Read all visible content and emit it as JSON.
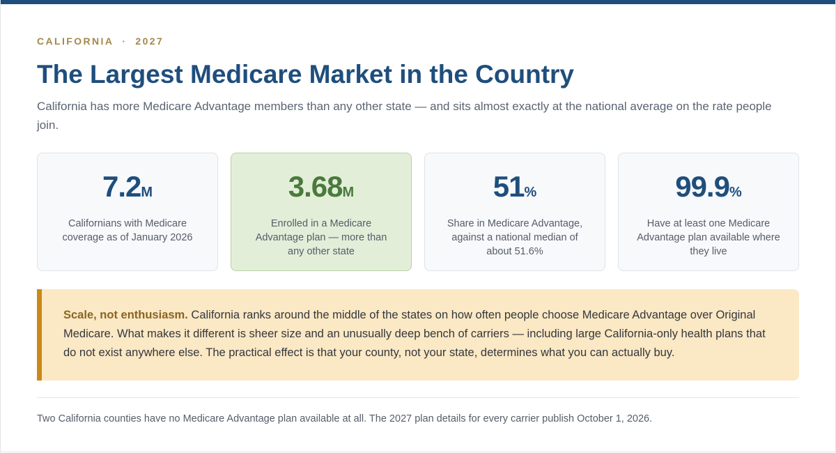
{
  "header": {
    "state": "CALIFORNIA",
    "separator": "·",
    "year": "2027",
    "title": "The Largest Medicare Market in the Country",
    "subtitle": "California has more Medicare Advantage members than any other state — and sits almost exactly at the national average on the rate people join."
  },
  "stats": [
    {
      "value": "7.2",
      "unit": "M",
      "label": "Californians with Medicare coverage as of January 2026"
    },
    {
      "value": "3.68",
      "unit": "M",
      "label": "Enrolled in a Medicare Advantage plan — more than any other state"
    },
    {
      "value": "51",
      "unit": "%",
      "label": "Share in Medicare Advantage, against a national median of about 51.6%"
    },
    {
      "value": "99.9",
      "unit": "%",
      "label": "Have at least one Medicare Advantage plan available where they live"
    }
  ],
  "callout": {
    "lead": "Scale, not enthusiasm.",
    "body": "California ranks around the middle of the states on how often people choose Medicare Advantage over Original Medicare. What makes it different is sheer size and an unusually deep bench of carriers — including large California-only health plans that do not exist anywhere else. The practical effect is that your county, not your state, determines what you can actually buy."
  },
  "footnote": "Two California counties have no Medicare Advantage plan available at all. The 2027 plan details for every carrier publish October 1, 2026.",
  "colors": {
    "primary": "#1f4e7d",
    "accent_gold": "#a4884a",
    "highlight_green": "#4a7a3c",
    "callout_bg": "#fbe8c4",
    "callout_border": "#c98a1a"
  }
}
